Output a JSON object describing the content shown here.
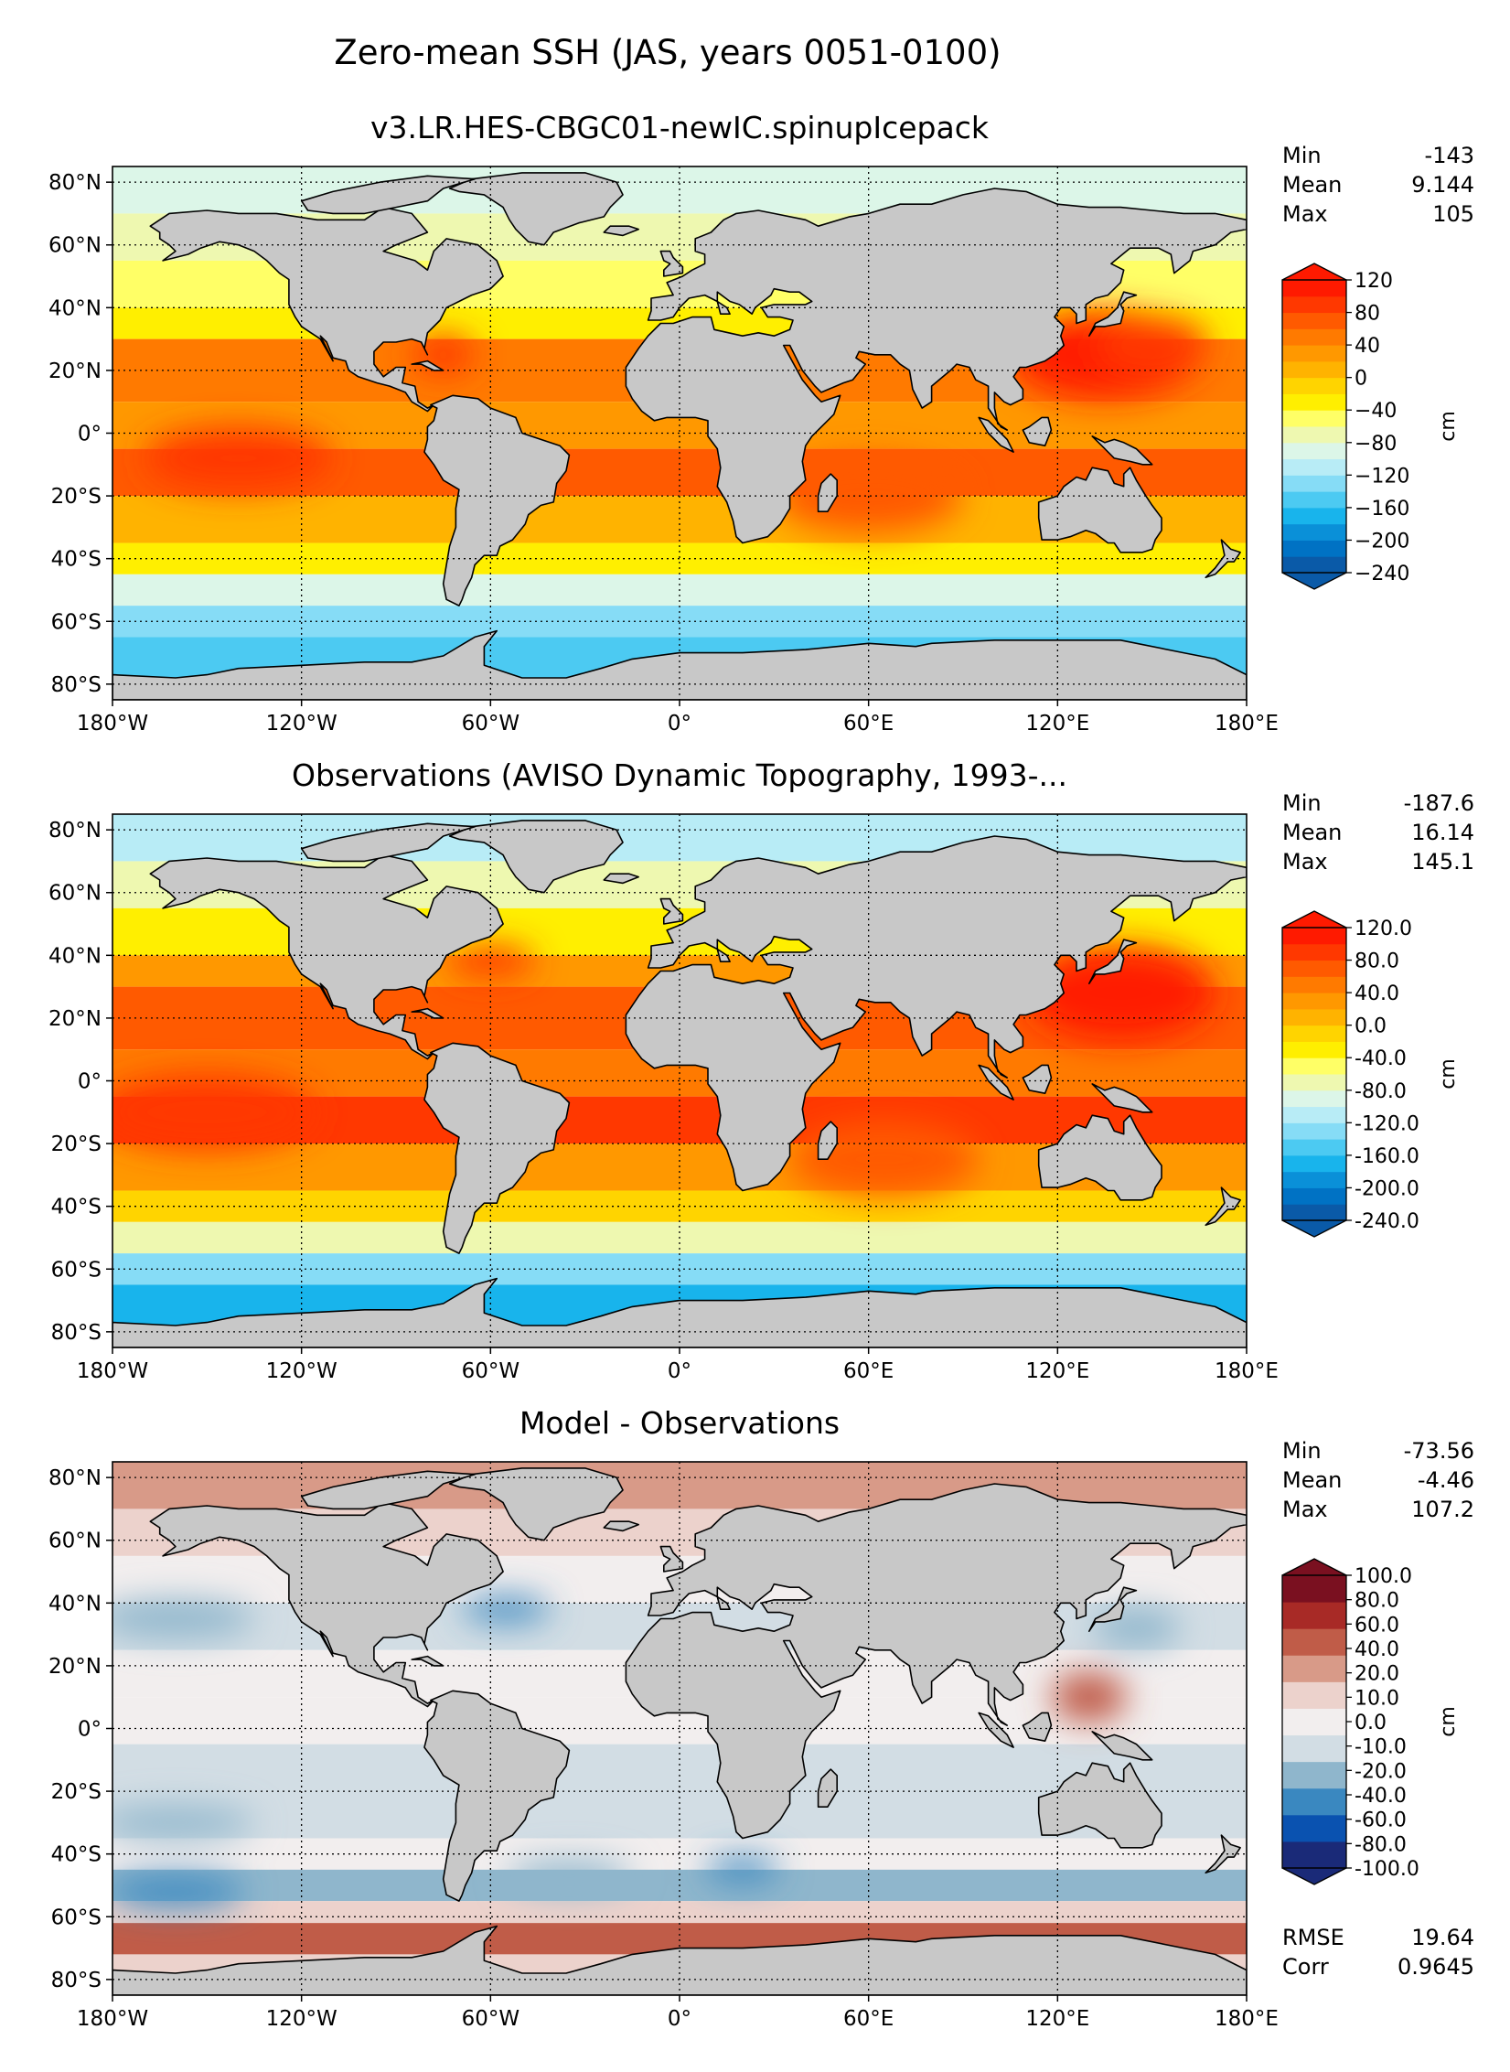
{
  "title": "Zero-mean SSH (JAS, years 0051-0100)",
  "lat_ticks": [
    "80°N",
    "60°N",
    "40°N",
    "20°N",
    "0°",
    "20°S",
    "40°S",
    "60°S",
    "80°S"
  ],
  "lon_ticks": [
    "180°W",
    "120°W",
    "60°W",
    "0°",
    "60°E",
    "120°E",
    "180°E"
  ],
  "chart_data": [
    {
      "type": "heatmap",
      "title": "v3.LR.HES-CBGC01-newIC.spinupIcepack",
      "stats": [
        {
          "label": "Min",
          "value": "-143"
        },
        {
          "label": "Mean",
          "value": "9.144"
        },
        {
          "label": "Max",
          "value": "105"
        }
      ],
      "colorbar": {
        "label": "cm",
        "ticks": [
          "120",
          "80",
          "40",
          "0",
          "−40",
          "−80",
          "−120",
          "−160",
          "−200",
          "−240"
        ],
        "colors": [
          "#0a5aa8",
          "#0072c4",
          "#0a90d8",
          "#18b4ec",
          "#4ccaf2",
          "#86dcf6",
          "#b8ecf6",
          "#dcf6e8",
          "#eef8b0",
          "#ffff66",
          "#ffef00",
          "#ffd400",
          "#ffb300",
          "#ff9800",
          "#ff7a00",
          "#ff5a00",
          "#ff3800",
          "#ff1a00"
        ]
      }
    },
    {
      "type": "heatmap",
      "title": "Observations (AVISO Dynamic Topography, 1993-...",
      "stats": [
        {
          "label": "Min",
          "value": "-187.6"
        },
        {
          "label": "Mean",
          "value": "16.14"
        },
        {
          "label": "Max",
          "value": "145.1"
        }
      ],
      "colorbar": {
        "label": "cm",
        "ticks": [
          "120.0",
          "80.0",
          "40.0",
          "0.0",
          "-40.0",
          "-80.0",
          "-120.0",
          "-160.0",
          "-200.0",
          "-240.0"
        ],
        "colors": [
          "#0a5aa8",
          "#0072c4",
          "#0a90d8",
          "#18b4ec",
          "#4ccaf2",
          "#86dcf6",
          "#b8ecf6",
          "#dcf6e8",
          "#eef8b0",
          "#ffff66",
          "#ffef00",
          "#ffd400",
          "#ffb300",
          "#ff9800",
          "#ff7a00",
          "#ff5a00",
          "#ff3800",
          "#ff1a00"
        ]
      }
    },
    {
      "type": "heatmap",
      "title": "Model - Observations",
      "stats": [
        {
          "label": "Min",
          "value": "-73.56"
        },
        {
          "label": "Mean",
          "value": "-4.46"
        },
        {
          "label": "Max",
          "value": "107.2"
        }
      ],
      "extra_stats": [
        {
          "label": "RMSE",
          "value": "19.64"
        },
        {
          "label": "Corr",
          "value": "0.9645"
        }
      ],
      "colorbar": {
        "label": "cm",
        "ticks": [
          "100.0",
          "80.0",
          "60.0",
          "40.0",
          "20.0",
          "10.0",
          "0.0",
          "-10.0",
          "-20.0",
          "-40.0",
          "-60.0",
          "-80.0",
          "-100.0"
        ],
        "colors": [
          "#1a2a78",
          "#0a52b0",
          "#3a88c0",
          "#8fb6cc",
          "#d2dde4",
          "#f2eeee",
          "#ecd2cc",
          "#d89a88",
          "#c05c48",
          "#a82a26",
          "#7a1020"
        ]
      }
    }
  ]
}
